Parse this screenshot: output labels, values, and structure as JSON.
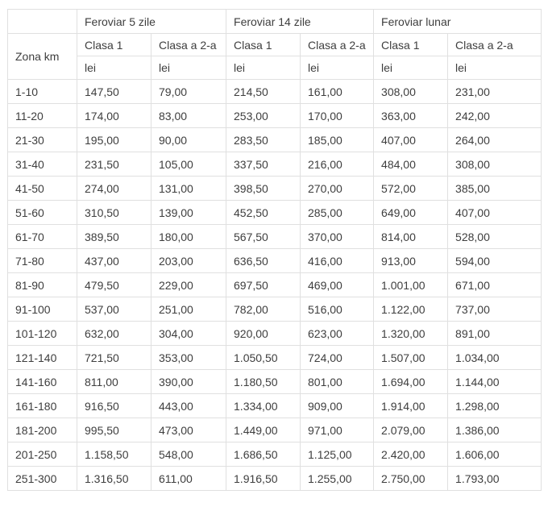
{
  "table": {
    "zona_header": "Zona km",
    "groups": [
      {
        "label": "Feroviar 5 zile"
      },
      {
        "label": "Feroviar 14 zile"
      },
      {
        "label": "Feroviar lunar"
      }
    ],
    "class_headers": [
      "Clasa 1",
      "Clasa a 2-a"
    ],
    "unit": "lei",
    "rows": [
      {
        "zona": "1-10",
        "values": [
          "147,50",
          "79,00",
          "214,50",
          "161,00",
          "308,00",
          "231,00"
        ]
      },
      {
        "zona": "11-20",
        "values": [
          "174,00",
          "83,00",
          "253,00",
          "170,00",
          "363,00",
          "242,00"
        ]
      },
      {
        "zona": "21-30",
        "values": [
          "195,00",
          "90,00",
          "283,50",
          "185,00",
          "407,00",
          "264,00"
        ]
      },
      {
        "zona": "31-40",
        "values": [
          "231,50",
          "105,00",
          "337,50",
          "216,00",
          "484,00",
          "308,00"
        ]
      },
      {
        "zona": "41-50",
        "values": [
          "274,00",
          "131,00",
          "398,50",
          "270,00",
          "572,00",
          "385,00"
        ]
      },
      {
        "zona": "51-60",
        "values": [
          "310,50",
          "139,00",
          "452,50",
          "285,00",
          "649,00",
          "407,00"
        ]
      },
      {
        "zona": "61-70",
        "values": [
          "389,50",
          "180,00",
          "567,50",
          "370,00",
          "814,00",
          "528,00"
        ]
      },
      {
        "zona": "71-80",
        "values": [
          "437,00",
          "203,00",
          "636,50",
          "416,00",
          "913,00",
          "594,00"
        ]
      },
      {
        "zona": "81-90",
        "values": [
          "479,50",
          "229,00",
          "697,50",
          "469,00",
          "1.001,00",
          "671,00"
        ]
      },
      {
        "zona": "91-100",
        "values": [
          "537,00",
          "251,00",
          "782,00",
          "516,00",
          "1.122,00",
          "737,00"
        ]
      },
      {
        "zona": "101-120",
        "values": [
          "632,00",
          "304,00",
          "920,00",
          "623,00",
          "1.320,00",
          "891,00"
        ]
      },
      {
        "zona": "121-140",
        "values": [
          "721,50",
          "353,00",
          "1.050,50",
          "724,00",
          "1.507,00",
          "1.034,00"
        ]
      },
      {
        "zona": "141-160",
        "values": [
          "811,00",
          "390,00",
          "1.180,50",
          "801,00",
          "1.694,00",
          "1.144,00"
        ]
      },
      {
        "zona": "161-180",
        "values": [
          "916,50",
          "443,00",
          "1.334,00",
          "909,00",
          "1.914,00",
          "1.298,00"
        ]
      },
      {
        "zona": "181-200",
        "values": [
          "995,50",
          "473,00",
          "1.449,00",
          "971,00",
          "2.079,00",
          "1.386,00"
        ]
      },
      {
        "zona": "201-250",
        "values": [
          "1.158,50",
          "548,00",
          "1.686,50",
          "1.125,00",
          "2.420,00",
          "1.606,00"
        ]
      },
      {
        "zona": "251-300",
        "values": [
          "1.316,50",
          "611,00",
          "1.916,50",
          "1.255,00",
          "2.750,00",
          "1.793,00"
        ]
      }
    ],
    "colors": {
      "text": "#3e3e3e",
      "border": "#e0e0e0",
      "background": "#ffffff"
    }
  }
}
